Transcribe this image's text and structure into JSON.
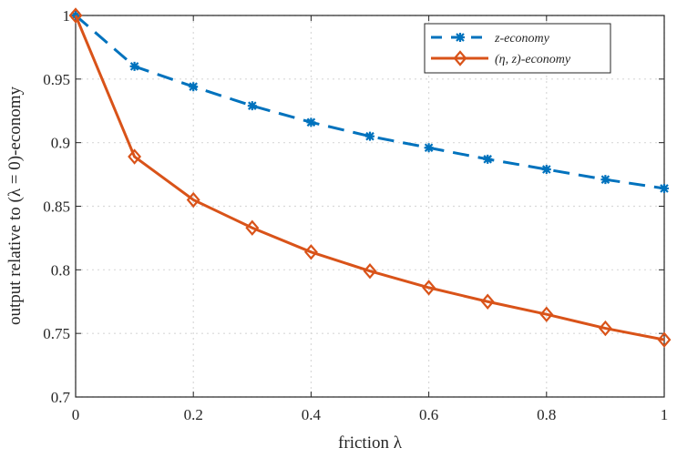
{
  "chart_data": {
    "type": "line",
    "title": "",
    "xlabel": "friction λ",
    "ylabel": "output relative to (λ = 0)-economy",
    "xlim": [
      0,
      1
    ],
    "ylim": [
      0.7,
      1
    ],
    "xticks": [
      "0",
      "0.2",
      "0.4",
      "0.6",
      "0.8",
      "1"
    ],
    "yticks": [
      "0.7",
      "0.75",
      "0.8",
      "0.85",
      "0.9",
      "0.95",
      "1"
    ],
    "grid": true,
    "legend_position": "top-right",
    "x": [
      0,
      0.1,
      0.2,
      0.3,
      0.4,
      0.5,
      0.6,
      0.7,
      0.8,
      0.9,
      1.0
    ],
    "series": [
      {
        "name": "z-economy",
        "color": "#0072BD",
        "style": "dashed",
        "marker": "asterisk",
        "values": [
          1.0,
          0.96,
          0.944,
          0.929,
          0.916,
          0.905,
          0.896,
          0.887,
          0.879,
          0.871,
          0.864
        ]
      },
      {
        "name": "(η, z)-economy",
        "color": "#D95319",
        "style": "solid",
        "marker": "diamond",
        "values": [
          1.0,
          0.889,
          0.855,
          0.833,
          0.814,
          0.799,
          0.786,
          0.775,
          0.765,
          0.754,
          0.745
        ]
      }
    ]
  }
}
